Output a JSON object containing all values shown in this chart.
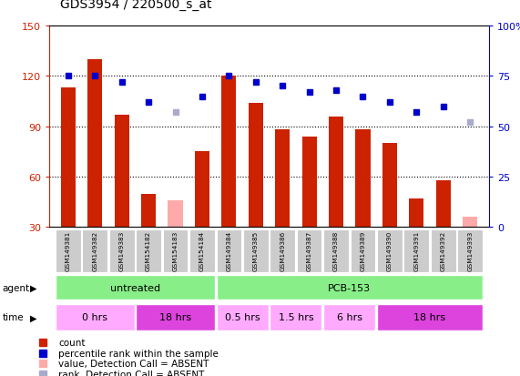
{
  "title": "GDS3954 / 220500_s_at",
  "samples": [
    "GSM149381",
    "GSM149382",
    "GSM149383",
    "GSM154182",
    "GSM154183",
    "GSM154184",
    "GSM149384",
    "GSM149385",
    "GSM149386",
    "GSM149387",
    "GSM149388",
    "GSM149389",
    "GSM149390",
    "GSM149391",
    "GSM149392",
    "GSM149393"
  ],
  "bar_values": [
    113,
    130,
    97,
    50,
    null,
    75,
    120,
    104,
    88,
    84,
    96,
    88,
    80,
    47,
    58,
    null
  ],
  "bar_absent": [
    null,
    null,
    null,
    null,
    46,
    null,
    null,
    null,
    null,
    null,
    null,
    null,
    null,
    null,
    null,
    36
  ],
  "dot_values": [
    75,
    75,
    72,
    62,
    null,
    65,
    75,
    72,
    70,
    67,
    68,
    65,
    62,
    57,
    60,
    null
  ],
  "dot_absent": [
    null,
    null,
    null,
    null,
    57,
    null,
    null,
    null,
    null,
    null,
    null,
    null,
    null,
    null,
    null,
    52
  ],
  "ylim_left": [
    30,
    150
  ],
  "ylim_right": [
    0,
    100
  ],
  "yticks_left": [
    30,
    60,
    90,
    120,
    150
  ],
  "yticks_right": [
    0,
    25,
    50,
    75,
    100
  ],
  "ytick_labels_left": [
    "30",
    "60",
    "90",
    "120",
    "150"
  ],
  "ytick_labels_right": [
    "0",
    "25",
    "50",
    "75",
    "100%"
  ],
  "bar_color": "#cc2200",
  "bar_absent_color": "#ffaaaa",
  "dot_color": "#0000cc",
  "dot_absent_color": "#aaaacc",
  "agent_groups": [
    {
      "label": "untreated",
      "start": 0,
      "end": 5,
      "color": "#88ee88"
    },
    {
      "label": "PCB-153",
      "start": 6,
      "end": 15,
      "color": "#88ee88"
    }
  ],
  "time_groups": [
    {
      "label": "0 hrs",
      "start": 0,
      "end": 2,
      "color": "#ffaaff"
    },
    {
      "label": "18 hrs",
      "start": 3,
      "end": 5,
      "color": "#dd44dd"
    },
    {
      "label": "0.5 hrs",
      "start": 6,
      "end": 7,
      "color": "#ffaaff"
    },
    {
      "label": "1.5 hrs",
      "start": 8,
      "end": 9,
      "color": "#ffaaff"
    },
    {
      "label": "6 hrs",
      "start": 10,
      "end": 11,
      "color": "#ffaaff"
    },
    {
      "label": "18 hrs",
      "start": 12,
      "end": 15,
      "color": "#dd44dd"
    }
  ],
  "grid_color": "#555555",
  "bg_color": "#ffffff",
  "tick_area_color": "#cccccc",
  "legend_items": [
    {
      "color": "#cc2200",
      "marker": "s",
      "label": "count"
    },
    {
      "color": "#0000cc",
      "marker": "s",
      "label": "percentile rank within the sample"
    },
    {
      "color": "#ffaaaa",
      "marker": "s",
      "label": "value, Detection Call = ABSENT"
    },
    {
      "color": "#aaaacc",
      "marker": "s",
      "label": "rank, Detection Call = ABSENT"
    }
  ]
}
